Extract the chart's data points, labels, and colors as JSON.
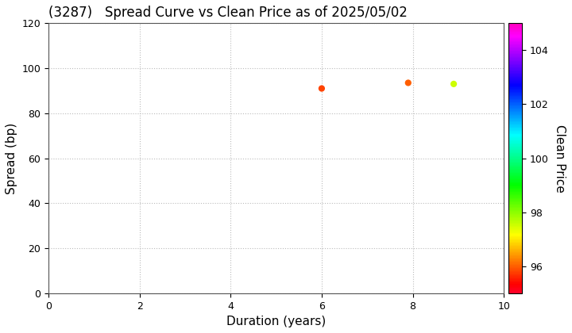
{
  "title": "(3287)   Spread Curve vs Clean Price as of 2025/05/02",
  "xlabel": "Duration (years)",
  "ylabel": "Spread (bp)",
  "colorbar_label": "Clean Price",
  "xlim": [
    0,
    10
  ],
  "ylim": [
    0,
    120
  ],
  "xticks": [
    0,
    2,
    4,
    6,
    8,
    10
  ],
  "yticks": [
    0,
    20,
    40,
    60,
    80,
    100,
    120
  ],
  "colorbar_min": 95,
  "colorbar_max": 105,
  "colorbar_ticks": [
    96,
    98,
    100,
    102,
    104
  ],
  "points": [
    {
      "duration": 6.0,
      "spread": 91.0,
      "clean_price": 95.8
    },
    {
      "duration": 7.9,
      "spread": 93.5,
      "clean_price": 96.0
    },
    {
      "duration": 8.9,
      "spread": 93.0,
      "clean_price": 97.5
    }
  ],
  "marker_size": 35,
  "grid_color": "#bbbbbb",
  "grid_style": "dotted",
  "background_color": "#ffffff",
  "title_fontsize": 12,
  "axis_fontsize": 11
}
